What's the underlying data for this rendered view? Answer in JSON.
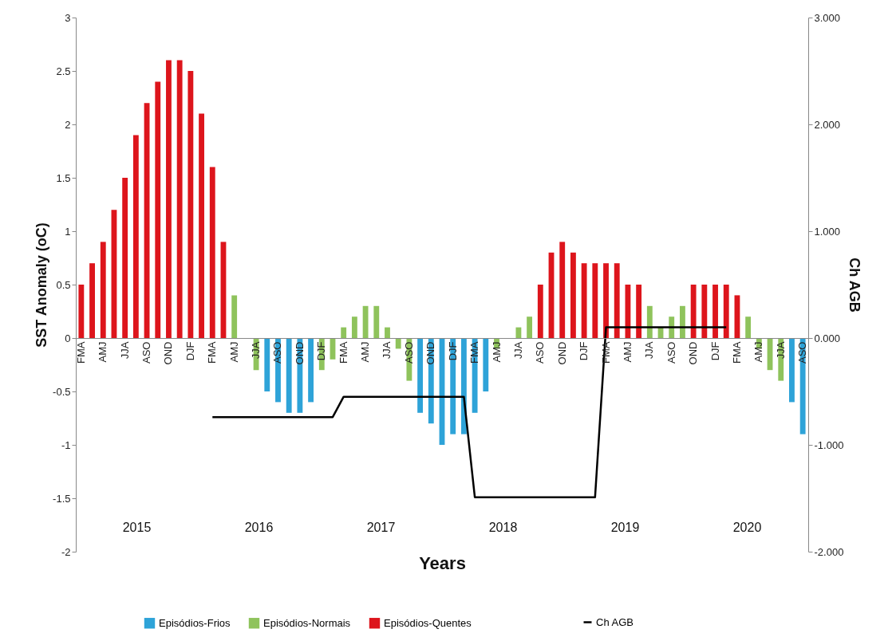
{
  "chart_data": {
    "type": "bar",
    "xlabel": "Years",
    "ylabel": "SST Anomaly (oC)",
    "y2label": "Ch AGB",
    "categories": [
      "FMA",
      null,
      "AMJ",
      null,
      "JJA",
      null,
      "ASO",
      null,
      "OND",
      null,
      "DJF",
      null,
      "FMA",
      null,
      "AMJ",
      null,
      "JJA",
      null,
      "ASO",
      null,
      "OND",
      null,
      "DJF",
      null,
      "FMA",
      null,
      "AMJ",
      null,
      "JJA",
      null,
      "ASO",
      null,
      "OND",
      null,
      "DJF",
      null,
      "FMA",
      null,
      "AMJ",
      null,
      "JJA",
      null,
      "ASO",
      null,
      "OND",
      null,
      "DJF",
      null,
      "FMA",
      null,
      "AMJ",
      null,
      "JJA",
      null,
      "ASO",
      null,
      "OND",
      null,
      "DJF",
      null,
      "FMA",
      null,
      "AMJ",
      null,
      "JJA",
      null,
      "ASO"
    ],
    "series": [
      {
        "name": "Episódios-Frios",
        "color": "#2ea3d8",
        "values": [
          null,
          null,
          null,
          null,
          null,
          null,
          null,
          null,
          null,
          null,
          null,
          null,
          null,
          null,
          null,
          null,
          null,
          -0.5,
          -0.6,
          -0.7,
          -0.7,
          -0.6,
          null,
          null,
          null,
          null,
          null,
          null,
          null,
          null,
          null,
          -0.7,
          -0.8,
          -1.0,
          -0.9,
          -0.9,
          -0.7,
          -0.5,
          null,
          null,
          null,
          null,
          null,
          null,
          null,
          null,
          null,
          null,
          null,
          null,
          null,
          null,
          null,
          null,
          null,
          null,
          null,
          null,
          null,
          null,
          null,
          null,
          null,
          null,
          null,
          -0.6,
          -0.9
        ]
      },
      {
        "name": "Episódios-Normais",
        "color": "#8fc35c",
        "values": [
          null,
          null,
          null,
          null,
          null,
          null,
          null,
          null,
          null,
          null,
          null,
          null,
          null,
          null,
          0.4,
          0,
          -0.3,
          null,
          null,
          null,
          null,
          null,
          -0.3,
          -0.2,
          0.1,
          0.2,
          0.3,
          0.3,
          0.1,
          -0.1,
          -0.4,
          null,
          null,
          null,
          null,
          null,
          null,
          null,
          -0.1,
          0,
          0.1,
          0.2,
          null,
          null,
          null,
          null,
          null,
          null,
          null,
          null,
          null,
          null,
          0.3,
          0.1,
          0.2,
          0.3,
          null,
          null,
          null,
          null,
          null,
          0.2,
          -0.1,
          -0.3,
          -0.4,
          null,
          null
        ]
      },
      {
        "name": "Episódios-Quentes",
        "color": "#dd151c",
        "values": [
          0.5,
          0.7,
          0.9,
          1.2,
          1.5,
          1.9,
          2.2,
          2.4,
          2.6,
          2.6,
          2.5,
          2.1,
          1.6,
          0.9,
          null,
          null,
          null,
          null,
          null,
          null,
          null,
          null,
          null,
          null,
          null,
          null,
          null,
          null,
          null,
          null,
          null,
          null,
          null,
          null,
          null,
          null,
          null,
          null,
          null,
          null,
          null,
          null,
          0.5,
          0.8,
          0.9,
          0.8,
          0.7,
          0.7,
          0.7,
          0.7,
          0.5,
          0.5,
          null,
          null,
          null,
          null,
          0.5,
          0.5,
          0.5,
          0.5,
          0.4,
          null,
          null,
          null,
          null,
          null,
          null
        ]
      },
      {
        "name": "Ch AGB",
        "type": "line",
        "axis": "y2",
        "color": "#000000",
        "values": [
          null,
          null,
          null,
          null,
          null,
          null,
          null,
          null,
          null,
          null,
          null,
          null,
          -0.74,
          -0.74,
          -0.74,
          -0.74,
          -0.74,
          -0.74,
          -0.74,
          -0.74,
          -0.74,
          -0.74,
          -0.74,
          -0.74,
          -0.55,
          -0.55,
          -0.55,
          -0.55,
          -0.55,
          -0.55,
          -0.55,
          -0.55,
          -0.55,
          -0.55,
          -0.55,
          -0.55,
          -1.49,
          -1.49,
          -1.49,
          -1.49,
          -1.49,
          -1.49,
          -1.49,
          -1.49,
          -1.49,
          -1.49,
          -1.49,
          -1.49,
          0.1,
          0.1,
          0.1,
          0.1,
          0.1,
          0.1,
          0.1,
          0.1,
          0.1,
          0.1,
          0.1,
          0.1,
          null,
          null,
          null,
          null,
          null,
          null,
          null
        ]
      }
    ],
    "ylim": [
      -2,
      3
    ],
    "yticks": [
      -2,
      -1.5,
      -1,
      -0.5,
      0,
      0.5,
      1,
      1.5,
      2,
      2.5,
      3
    ],
    "y2lim": [
      -2,
      3
    ],
    "y2ticks": [
      {
        "value": -2,
        "label": "-2.000"
      },
      {
        "value": -1,
        "label": "-1.000"
      },
      {
        "value": 0,
        "label": "0.000"
      },
      {
        "value": 1,
        "label": "1.000"
      },
      {
        "value": 2,
        "label": "2.000"
      },
      {
        "value": 3,
        "label": "3.000"
      }
    ],
    "annotations": [
      "2015",
      "2016",
      "2017",
      "2018",
      "2019",
      "2020"
    ],
    "grid": false,
    "legend": "bottom"
  }
}
